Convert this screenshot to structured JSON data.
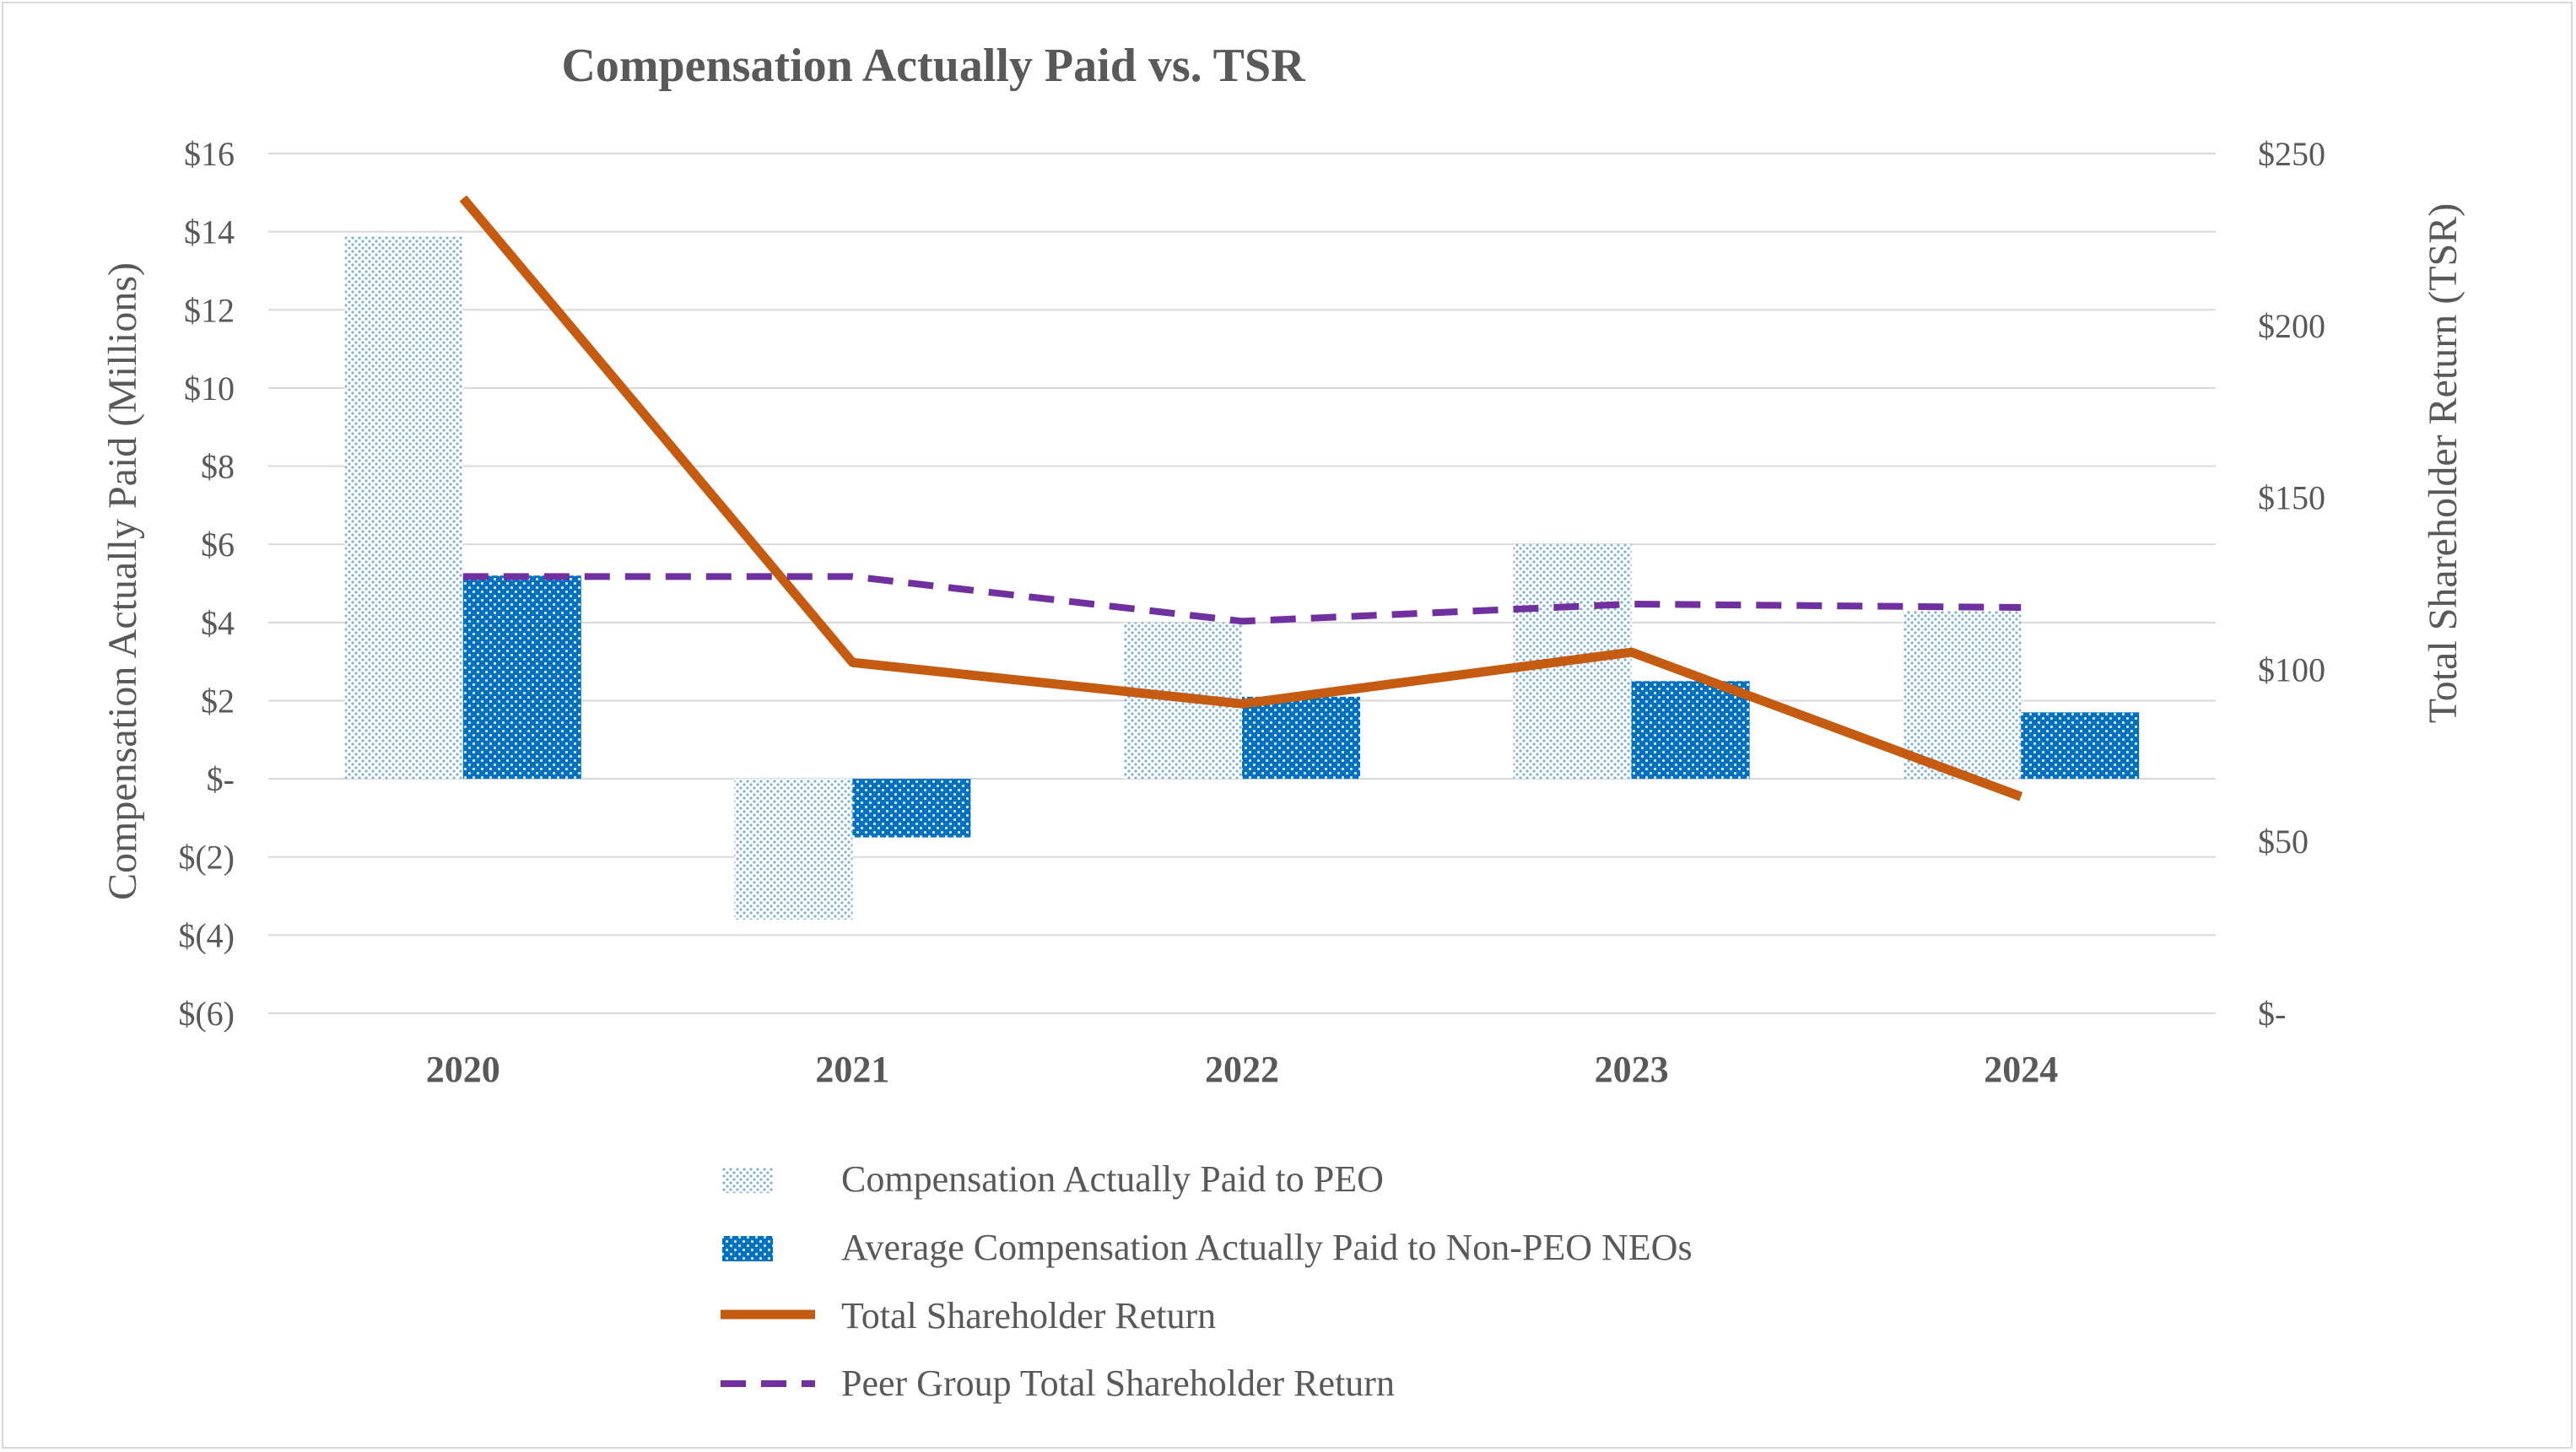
{
  "chart_data": {
    "type": "bar",
    "title": "Compensation Actually Paid vs. TSR",
    "categories": [
      "2020",
      "2021",
      "2022",
      "2023",
      "2024"
    ],
    "ylabel": "Compensation Actually Paid (Millions)",
    "y2label": "Total Shareholder Return (TSR)",
    "ylim": [
      -6,
      16
    ],
    "y2lim": [
      0,
      250
    ],
    "yticks": [
      16,
      14,
      12,
      10,
      8,
      6,
      4,
      2,
      0,
      -2,
      -4,
      -6
    ],
    "ytick_labels": [
      "$16",
      "$14",
      "$12",
      "$10",
      "$8",
      "$6",
      "$4",
      "$2",
      "$-",
      "$(2)",
      "$(4)",
      "$(6)"
    ],
    "y2ticks": [
      250,
      200,
      150,
      100,
      50,
      0
    ],
    "y2tick_labels": [
      "$250",
      "$200",
      "$150",
      "$100",
      "$50",
      "$-"
    ],
    "grid": true,
    "legend_position": "bottom",
    "series": [
      {
        "name": "Compensation Actually Paid to PEO",
        "kind": "bar",
        "axis": "left",
        "color": "#9dc3e6",
        "pattern": "dots",
        "values": [
          13.9,
          -3.6,
          4.0,
          6.0,
          4.3
        ]
      },
      {
        "name": "Average Compensation Actually Paid to Non-PEO NEOs",
        "kind": "bar",
        "axis": "left",
        "color": "#0070c0",
        "pattern": "diamonds",
        "values": [
          5.2,
          -1.5,
          2.1,
          2.5,
          1.7
        ]
      },
      {
        "name": "Total Shareholder Return",
        "kind": "line",
        "axis": "right",
        "color": "#c55a11",
        "dash": "solid",
        "values": [
          237,
          102,
          90,
          105,
          63
        ]
      },
      {
        "name": "Peer Group Total Shareholder Return",
        "kind": "line",
        "axis": "right",
        "color": "#7030a0",
        "dash": "dashed",
        "values": [
          127,
          127,
          114,
          119,
          118
        ]
      }
    ]
  }
}
